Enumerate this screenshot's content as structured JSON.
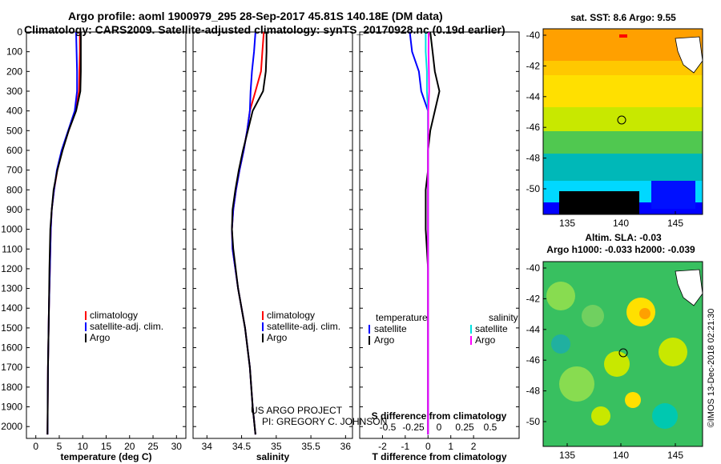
{
  "header": {
    "title_line1": "Argo profile: aoml 1900979_295 28-Sep-2017 45.81S 140.18E (DM data)",
    "title_line2": "Climatology: CARS2009. Satellite-adjusted climatology: synTS_20170928.nc (0.19d earlier)"
  },
  "credits": {
    "project": "US ARGO PROJECT",
    "pi": "PI: GREGORY C. JOHNSON",
    "imos": "©IMOS 13-Dec-2018 02:21:30"
  },
  "maps": {
    "sst_title": "sat. SST: 8.6 Argo: 9.55",
    "sla_title1": "Altim. SLA: -0.03",
    "sla_title2": "Argo h1000: -0.033 h2000: -0.039",
    "lon_ticks": [
      "135",
      "140",
      "145"
    ],
    "lat_ticks": [
      "-40",
      "-42",
      "-44",
      "-46",
      "-48",
      "-50"
    ]
  },
  "chart_data": [
    {
      "type": "line",
      "xlabel": "temperature (deg C)",
      "xlim": [
        -2,
        32
      ],
      "ylim": [
        2060,
        0
      ],
      "xticks": [
        0,
        5,
        10,
        15,
        20,
        25,
        30
      ],
      "yticks": [
        0,
        100,
        200,
        300,
        400,
        500,
        600,
        700,
        800,
        900,
        1000,
        1100,
        1200,
        1300,
        1400,
        1500,
        1600,
        1700,
        1800,
        1900,
        2000
      ],
      "legend": [
        "climatology",
        "satellite-adj. clim.",
        "Argo"
      ],
      "series": [
        {
          "name": "climatology",
          "color": "#ff0000",
          "x": [
            9.4,
            9.4,
            9.3,
            9.2,
            8.5,
            7.0,
            5.6,
            4.6,
            3.9,
            3.4,
            3.2,
            3.0,
            2.8,
            2.6,
            2.5
          ],
          "y": [
            0,
            100,
            200,
            300,
            400,
            500,
            600,
            700,
            800,
            900,
            1000,
            1200,
            1400,
            1700,
            2040
          ]
        },
        {
          "name": "satellite-adj. clim.",
          "color": "#0000ff",
          "x": [
            8.6,
            8.7,
            8.8,
            8.8,
            8.3,
            6.9,
            5.5,
            4.5,
            3.9,
            3.4,
            3.2,
            3.0,
            2.8,
            2.6,
            2.5
          ],
          "y": [
            0,
            100,
            200,
            300,
            400,
            500,
            600,
            700,
            800,
            900,
            1000,
            1200,
            1400,
            1700,
            2040
          ]
        },
        {
          "name": "Argo",
          "color": "#000000",
          "x": [
            9.6,
            9.6,
            9.6,
            9.5,
            8.6,
            7.0,
            5.7,
            4.6,
            3.8,
            3.4,
            3.1,
            2.9,
            2.8,
            2.6,
            2.5
          ],
          "y": [
            0,
            100,
            200,
            300,
            400,
            500,
            600,
            700,
            800,
            900,
            1000,
            1200,
            1400,
            1700,
            2040
          ]
        }
      ]
    },
    {
      "type": "line",
      "xlabel": "salinity",
      "xlim": [
        33.8,
        36.1
      ],
      "ylim": [
        2060,
        0
      ],
      "xticks": [
        34,
        34.5,
        35,
        35.5,
        36
      ],
      "legend": [
        "climatology",
        "satellite-adj. clim.",
        "Argo"
      ],
      "series": [
        {
          "name": "climatology",
          "color": "#ff0000",
          "x": [
            34.82,
            34.8,
            34.78,
            34.7,
            34.62,
            34.58,
            34.53,
            34.47,
            34.42,
            34.38,
            34.36,
            34.37,
            34.45,
            34.55,
            34.62,
            34.66,
            34.7
          ],
          "y": [
            0,
            100,
            200,
            300,
            400,
            500,
            600,
            700,
            800,
            900,
            1000,
            1100,
            1300,
            1500,
            1700,
            1900,
            2040
          ]
        },
        {
          "name": "satellite-adj. clim.",
          "color": "#0000ff",
          "x": [
            34.7,
            34.68,
            34.65,
            34.63,
            34.62,
            34.58,
            34.53,
            34.47,
            34.42,
            34.38,
            34.36,
            34.37,
            34.45,
            34.55,
            34.62,
            34.66,
            34.7
          ],
          "y": [
            0,
            100,
            200,
            300,
            400,
            500,
            600,
            700,
            800,
            900,
            1000,
            1100,
            1300,
            1500,
            1700,
            1900,
            2040
          ]
        },
        {
          "name": "Argo",
          "color": "#000000",
          "x": [
            34.86,
            34.86,
            34.85,
            34.81,
            34.66,
            34.59,
            34.52,
            34.46,
            34.41,
            34.37,
            34.36,
            34.38,
            34.45,
            34.55,
            34.62,
            34.66,
            34.7
          ],
          "y": [
            0,
            100,
            200,
            300,
            400,
            500,
            600,
            700,
            800,
            900,
            1000,
            1100,
            1300,
            1500,
            1700,
            1900,
            2040
          ]
        }
      ]
    },
    {
      "type": "line",
      "xlabel": "T difference from climatology",
      "xlabel2": "S difference from climatology",
      "xlim": [
        -3,
        4
      ],
      "ylim": [
        2060,
        0
      ],
      "xticks": [
        -2,
        -1,
        0,
        1,
        2
      ],
      "xticks2": [
        "-0.5",
        "-0.25",
        "0",
        "0.25",
        "0.5"
      ],
      "legend_temperature_heading": "temperature",
      "legend_salinity_heading": "salinity",
      "legend_temperature": [
        "satellite",
        "Argo"
      ],
      "legend_salinity": [
        "satellite",
        "Argo"
      ],
      "series": [
        {
          "name": "satellite",
          "color": "#0000ff",
          "x": [
            -0.8,
            -0.7,
            -0.4,
            -0.3,
            0.0,
            0.0,
            0.0,
            0.0,
            0.0,
            0.0,
            0.0,
            0.0,
            0.0
          ],
          "y": [
            0,
            100,
            200,
            300,
            400,
            500,
            600,
            700,
            800,
            1000,
            1200,
            1600,
            2040
          ]
        },
        {
          "name": "Argo",
          "color": "#000000",
          "x": [
            0.1,
            0.2,
            0.3,
            0.5,
            0.3,
            0.1,
            0.0,
            0.0,
            -0.1,
            -0.1,
            0.0,
            0.0,
            0.0
          ],
          "y": [
            0,
            100,
            200,
            300,
            400,
            500,
            600,
            700,
            800,
            1000,
            1200,
            1600,
            2040
          ]
        },
        {
          "name": "satellite",
          "color": "#00e0e0",
          "x": [
            -0.1,
            -0.1,
            -0.05,
            -0.05,
            0.0,
            0.0,
            0.0,
            0.0,
            0.0,
            0.0,
            0.0,
            0.0,
            0.0
          ],
          "y": [
            0,
            100,
            200,
            300,
            400,
            500,
            600,
            700,
            800,
            1000,
            1200,
            1600,
            2040
          ]
        },
        {
          "name": "Argo",
          "color": "#ff00ff",
          "x": [
            0.03,
            0.02,
            0.04,
            0.05,
            0.01,
            0.01,
            0.0,
            0.0,
            0.0,
            0.0,
            0.0,
            0.0,
            0.0
          ],
          "y": [
            0,
            100,
            200,
            300,
            400,
            500,
            600,
            700,
            800,
            1000,
            1200,
            1600,
            2040
          ]
        }
      ]
    }
  ]
}
